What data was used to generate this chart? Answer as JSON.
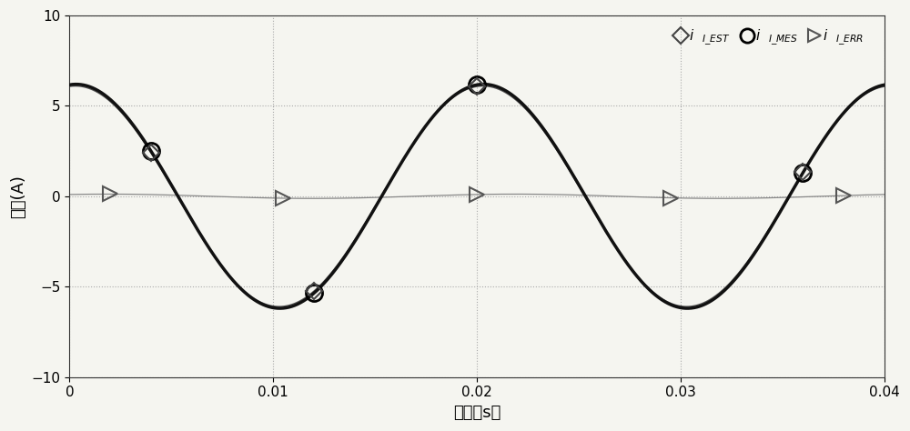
{
  "xlabel": "时间（s）",
  "ylabel": "电流(A)",
  "xlim": [
    0,
    0.04
  ],
  "ylim": [
    -10,
    10
  ],
  "xticks": [
    0,
    0.01,
    0.02,
    0.03,
    0.04
  ],
  "yticks": [
    -10,
    -5,
    0,
    5,
    10
  ],
  "freq": 50,
  "amplitude_main": 6.2,
  "amplitude_est": 6.1,
  "amplitude_err": 0.12,
  "phase_main": 1.47,
  "bg_color": "#f5f5f0",
  "grid_color": "#aaaaaa",
  "main_line_color": "#111111",
  "est_line_color": "#555555",
  "err_line_color": "#888888",
  "circle_times": [
    0.004,
    0.012,
    0.02,
    0.036
  ],
  "triangle_times": [
    0.002,
    0.0105,
    0.02,
    0.0295,
    0.038
  ]
}
